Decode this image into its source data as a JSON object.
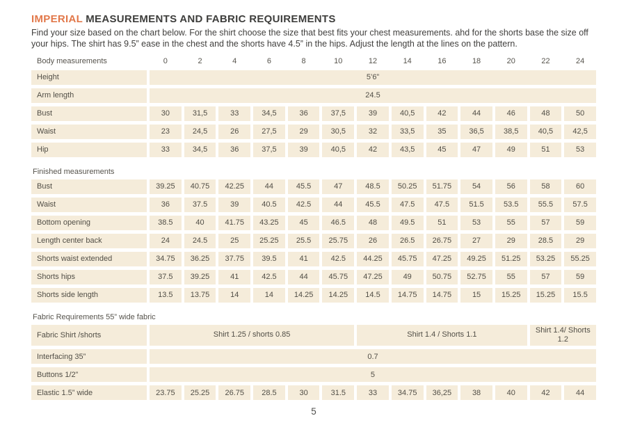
{
  "page": {
    "title": {
      "highlight": "IMPERIAL",
      "rest": " MEASUREMENTS AND FABRIC REQUIREMENTS"
    },
    "intro": "Find your size based on the chart below. For the shirt choose the size that best fits your chest measurements.  ahd for the shorts base the size off your hips. The shirt  has 9.5” ease in the chest and the shorts have 4.5” in the hips. Adjust the length at the lines on the pattern.",
    "page_number": "5"
  },
  "colors": {
    "accent_orange": "#e2784a",
    "cell_beige": "#f5ecda",
    "text_dark": "#4a4a45"
  },
  "table": {
    "header": {
      "label": "Body measurements",
      "sizes": [
        "0",
        "2",
        "4",
        "6",
        "8",
        "10",
        "12",
        "14",
        "16",
        "18",
        "20",
        "22",
        "24"
      ]
    },
    "sections": [
      {
        "title": "",
        "rows": [
          {
            "label": "Height",
            "span": "5’6”"
          },
          {
            "label": "Arm length",
            "span": "24.5"
          },
          {
            "label": "Bust",
            "values": [
              "30",
              "31,5",
              "33",
              "34,5",
              "36",
              "37,5",
              "39",
              "40,5",
              "42",
              "44",
              "46",
              "48",
              "50"
            ]
          },
          {
            "label": "Waist",
            "values": [
              "23",
              "24,5",
              "26",
              "27,5",
              "29",
              "30,5",
              "32",
              "33,5",
              "35",
              "36,5",
              "38,5",
              "40,5",
              "42,5"
            ]
          },
          {
            "label": "Hip",
            "values": [
              "33",
              "34,5",
              "36",
              "37,5",
              "39",
              "40,5",
              "42",
              "43,5",
              "45",
              "47",
              "49",
              "51",
              "53"
            ]
          }
        ]
      },
      {
        "title": "Finished measurements",
        "rows": [
          {
            "label": "Bust",
            "values": [
              "39.25",
              "40.75",
              "42.25",
              "44",
              "45.5",
              "47",
              "48.5",
              "50.25",
              "51.75",
              "54",
              "56",
              "58",
              "60"
            ]
          },
          {
            "label": "Waist",
            "values": [
              "36",
              "37.5",
              "39",
              "40.5",
              "42.5",
              "44",
              "45.5",
              "47.5",
              "47.5",
              "51.5",
              "53.5",
              "55.5",
              "57.5"
            ]
          },
          {
            "label": "Bottom opening",
            "values": [
              "38.5",
              "40",
              "41.75",
              "43.25",
              "45",
              "46.5",
              "48",
              "49.5",
              "51",
              "53",
              "55",
              "57",
              "59"
            ]
          },
          {
            "label": "Length center back",
            "values": [
              "24",
              "24.5",
              "25",
              "25.25",
              "25.5",
              "25.75",
              "26",
              "26.5",
              "26.75",
              "27",
              "29",
              "28.5",
              "29"
            ]
          },
          {
            "label": "Shorts waist extended",
            "values": [
              "34.75",
              "36.25",
              "37.75",
              "39.5",
              "41",
              "42.5",
              "44.25",
              "45.75",
              "47.25",
              "49.25",
              "51.25",
              "53.25",
              "55.25"
            ]
          },
          {
            "label": "Shorts hips",
            "values": [
              "37.5",
              "39.25",
              "41",
              "42.5",
              "44",
              "45.75",
              "47.25",
              "49",
              "50.75",
              "52.75",
              "55",
              "57",
              "59"
            ]
          },
          {
            "label": "Shorts side length",
            "values": [
              "13.5",
              "13.75",
              "14",
              "14",
              "14.25",
              "14.25",
              "14.5",
              "14.75",
              "14.75",
              "15",
              "15.25",
              "15.25",
              "15.5"
            ]
          }
        ]
      },
      {
        "title": "Fabric Requirements 55” wide fabric",
        "rows": [
          {
            "label": "Fabric Shirt /shorts",
            "spans": [
              {
                "text": "Shirt 1.25 / shorts 0.85",
                "cols": 6
              },
              {
                "text": "Shirt 1.4 /  Shorts 1.1",
                "cols": 5
              },
              {
                "text": "Shirt 1.4/ Shorts 1.2",
                "cols": 2
              }
            ]
          },
          {
            "label": "Interfacing 35”",
            "span": "0.7"
          },
          {
            "label": "Buttons 1/2”",
            "span": "5"
          },
          {
            "label": "Elastic 1.5” wide",
            "values": [
              "23.75",
              "25.25",
              "26.75",
              "28.5",
              "30",
              "31.5",
              "33",
              "34.75",
              "36,25",
              "38",
              "40",
              "42",
              "44"
            ]
          }
        ]
      }
    ]
  }
}
